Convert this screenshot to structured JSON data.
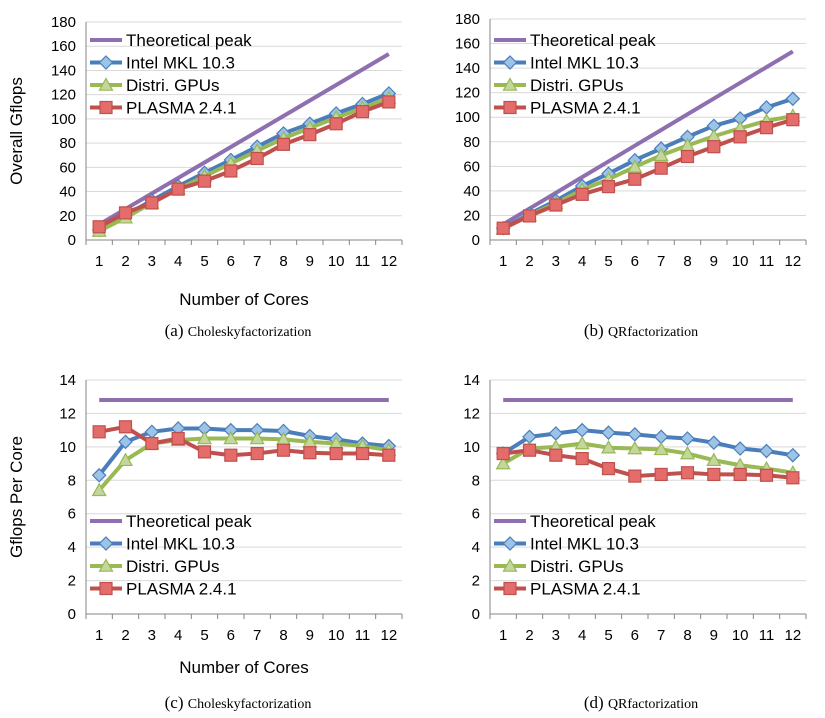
{
  "colors": {
    "theoretical_peak": "#8E6FB0",
    "intel_mkl": "#4A7EBB",
    "intel_mkl_marker": "#9DC3E6",
    "distri_gpus": "#98B954",
    "distri_gpus_marker": "#C3D69B",
    "plasma": "#C0504D",
    "plasma_marker": "#E46C6A",
    "grid": "#D9D9D9",
    "axis": "#868686"
  },
  "legend": [
    "Theoretical peak",
    "Intel MKL 10.3",
    "Distri. GPUs",
    "PLASMA 2.4.1"
  ],
  "chart_data": [
    {
      "panel": "a",
      "type": "line",
      "caption_letter": "(a)",
      "caption_text": "Choleskyfactorization",
      "xlabel": "Number of Cores",
      "ylabel": "Overall Gflops",
      "x": [
        1,
        2,
        3,
        4,
        5,
        6,
        7,
        8,
        9,
        10,
        11,
        12
      ],
      "ylim": [
        0,
        180
      ],
      "yticks": [
        0,
        20,
        40,
        60,
        80,
        100,
        120,
        140,
        160,
        180
      ],
      "grid": true,
      "legend_position": "top-left",
      "series": [
        {
          "name": "Theoretical peak",
          "marker": "none",
          "values": [
            12.8,
            25.6,
            38.4,
            51.2,
            64,
            76.8,
            89.6,
            102.4,
            115.2,
            128,
            140.8,
            153.6
          ]
        },
        {
          "name": "Intel MKL 10.3",
          "marker": "diamond",
          "values": [
            8.3,
            20.6,
            32.6,
            44.4,
            55.5,
            66.1,
            77.1,
            88,
            96,
            104.5,
            112.3,
            121
          ]
        },
        {
          "name": "Distri. GPUs",
          "marker": "triangle",
          "values": [
            7.4,
            18.4,
            30.6,
            42,
            52.6,
            63.2,
            73.7,
            84,
            92.5,
            101,
            109,
            117
          ]
        },
        {
          "name": "PLASMA 2.4.1",
          "marker": "square",
          "values": [
            10.9,
            22.4,
            30.6,
            42,
            48.6,
            57,
            67.3,
            79,
            87,
            96,
            106,
            114
          ]
        }
      ]
    },
    {
      "panel": "b",
      "type": "line",
      "caption_letter": "(b)",
      "caption_text": "QRfactorization",
      "xlabel": "",
      "ylabel": "",
      "x": [
        1,
        2,
        3,
        4,
        5,
        6,
        7,
        8,
        9,
        10,
        11,
        12
      ],
      "ylim": [
        0,
        180
      ],
      "yticks": [
        0,
        20,
        40,
        60,
        80,
        100,
        120,
        140,
        160,
        180
      ],
      "grid": true,
      "legend_position": "top-left",
      "series": [
        {
          "name": "Theoretical peak",
          "marker": "none",
          "values": [
            12.8,
            25.6,
            38.4,
            51.2,
            64,
            76.8,
            89.6,
            102.4,
            115.2,
            128,
            140.8,
            153.6
          ]
        },
        {
          "name": "Intel MKL 10.3",
          "marker": "diamond",
          "values": [
            9.6,
            21.2,
            32,
            44,
            54,
            65,
            74.5,
            84,
            93,
            99,
            108,
            115
          ]
        },
        {
          "name": "Distri. GPUs",
          "marker": "triangle",
          "values": [
            9,
            20,
            30,
            40.8,
            49.5,
            59.5,
            69,
            77,
            84.5,
            91,
            97,
            101
          ]
        },
        {
          "name": "PLASMA 2.4.1",
          "marker": "square",
          "values": [
            9.6,
            19.6,
            28.5,
            37.2,
            43.5,
            49.5,
            58.5,
            68,
            76,
            84,
            91.5,
            98
          ]
        }
      ]
    },
    {
      "panel": "c",
      "type": "line",
      "caption_letter": "(c)",
      "caption_text": "Choleskyfactorization",
      "xlabel": "Number of Cores",
      "ylabel": "Gflops Per Core",
      "x": [
        1,
        2,
        3,
        4,
        5,
        6,
        7,
        8,
        9,
        10,
        11,
        12
      ],
      "ylim": [
        0,
        14
      ],
      "yticks": [
        0,
        2,
        4,
        6,
        8,
        10,
        12,
        14
      ],
      "grid": true,
      "legend_position": "bottom-left",
      "series": [
        {
          "name": "Theoretical peak",
          "marker": "none",
          "values": [
            12.8,
            12.8,
            12.8,
            12.8,
            12.8,
            12.8,
            12.8,
            12.8,
            12.8,
            12.8,
            12.8,
            12.8
          ]
        },
        {
          "name": "Intel MKL 10.3",
          "marker": "diamond",
          "values": [
            8.3,
            10.3,
            10.9,
            11.1,
            11.1,
            11,
            11,
            10.95,
            10.65,
            10.45,
            10.2,
            10.05
          ]
        },
        {
          "name": "Distri. GPUs",
          "marker": "triangle",
          "values": [
            7.4,
            9.2,
            10.2,
            10.4,
            10.5,
            10.5,
            10.5,
            10.45,
            10.3,
            10.2,
            10.05,
            9.8
          ]
        },
        {
          "name": "PLASMA 2.4.1",
          "marker": "square",
          "values": [
            10.9,
            11.2,
            10.2,
            10.5,
            9.7,
            9.5,
            9.6,
            9.8,
            9.65,
            9.6,
            9.6,
            9.5
          ]
        }
      ]
    },
    {
      "panel": "d",
      "type": "line",
      "caption_letter": "(d)",
      "caption_text": "QRfactorization",
      "xlabel": "",
      "ylabel": "",
      "x": [
        1,
        2,
        3,
        4,
        5,
        6,
        7,
        8,
        9,
        10,
        11,
        12
      ],
      "ylim": [
        0,
        14
      ],
      "yticks": [
        0,
        2,
        4,
        6,
        8,
        10,
        12,
        14
      ],
      "grid": true,
      "legend_position": "bottom-left",
      "series": [
        {
          "name": "Theoretical peak",
          "marker": "none",
          "values": [
            12.8,
            12.8,
            12.8,
            12.8,
            12.8,
            12.8,
            12.8,
            12.8,
            12.8,
            12.8,
            12.8,
            12.8
          ]
        },
        {
          "name": "Intel MKL 10.3",
          "marker": "diamond",
          "values": [
            9.6,
            10.6,
            10.8,
            11,
            10.85,
            10.75,
            10.6,
            10.5,
            10.25,
            9.9,
            9.75,
            9.5
          ]
        },
        {
          "name": "Distri. GPUs",
          "marker": "triangle",
          "values": [
            9,
            9.9,
            10,
            10.2,
            9.95,
            9.9,
            9.85,
            9.6,
            9.2,
            8.9,
            8.7,
            8.45
          ]
        },
        {
          "name": "PLASMA 2.4.1",
          "marker": "square",
          "values": [
            9.6,
            9.8,
            9.5,
            9.3,
            8.7,
            8.25,
            8.35,
            8.45,
            8.35,
            8.35,
            8.3,
            8.15
          ]
        }
      ]
    }
  ]
}
